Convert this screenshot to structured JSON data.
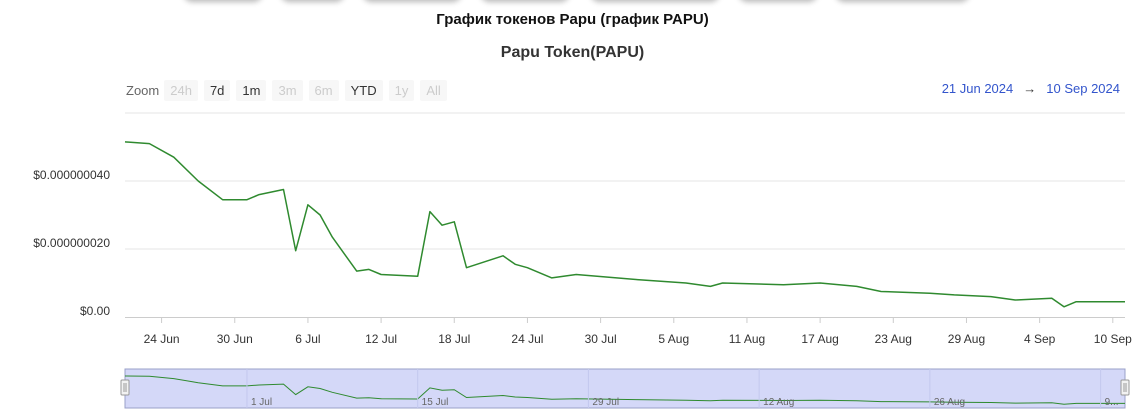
{
  "page": {
    "heading": "График токенов Papu (график PAPU)"
  },
  "range_selector": {
    "zoom_label": "Zoom",
    "buttons": [
      {
        "label": "24h",
        "enabled": false
      },
      {
        "label": "7d",
        "enabled": true
      },
      {
        "label": "1m",
        "enabled": true
      },
      {
        "label": "3m",
        "enabled": false
      },
      {
        "label": "6m",
        "enabled": false
      },
      {
        "label": "YTD",
        "enabled": true
      },
      {
        "label": "1y",
        "enabled": false
      },
      {
        "label": "All",
        "enabled": false
      }
    ],
    "from": "21 Jun 2024",
    "arrow": "→",
    "to": "10 Sep 2024"
  },
  "colors": {
    "line": "#2f8a2f",
    "navigator_fill": "#d4d8f8",
    "date_text": "#3355cc",
    "grid": "#e6e6e6"
  },
  "chart_data": {
    "type": "line",
    "title": "Papu Token(PAPU)",
    "xlabel": "",
    "ylabel": "",
    "y_ticks": [
      "$0.00",
      "$0.000000020",
      "$0.000000040"
    ],
    "x_ticks": [
      "24 Jun",
      "30 Jun",
      "6 Jul",
      "12 Jul",
      "18 Jul",
      "24 Jul",
      "30 Jul",
      "5 Aug",
      "11 Aug",
      "17 Aug",
      "23 Aug",
      "29 Aug",
      "4 Sep",
      "10 Sep"
    ],
    "navigator_ticks": [
      "1 Jul",
      "15 Jul",
      "29 Jul",
      "12 Aug",
      "26 Aug",
      "9..."
    ],
    "x_range": [
      "2024-06-21",
      "2024-09-11"
    ],
    "ylim": [
      0,
      6e-08
    ],
    "grid": true,
    "series": [
      {
        "values": [
          [
            "2024-06-21",
            5.15e-08
          ],
          [
            "2024-06-23",
            5.1e-08
          ],
          [
            "2024-06-25",
            4.7e-08
          ],
          [
            "2024-06-27",
            4e-08
          ],
          [
            "2024-06-29",
            3.45e-08
          ],
          [
            "2024-07-01",
            3.45e-08
          ],
          [
            "2024-07-02",
            3.6e-08
          ],
          [
            "2024-07-04",
            3.75e-08
          ],
          [
            "2024-07-05",
            1.95e-08
          ],
          [
            "2024-07-06",
            3.3e-08
          ],
          [
            "2024-07-07",
            3e-08
          ],
          [
            "2024-07-08",
            2.35e-08
          ],
          [
            "2024-07-10",
            1.35e-08
          ],
          [
            "2024-07-11",
            1.4e-08
          ],
          [
            "2024-07-12",
            1.25e-08
          ],
          [
            "2024-07-15",
            1.2e-08
          ],
          [
            "2024-07-16",
            3.1e-08
          ],
          [
            "2024-07-17",
            2.7e-08
          ],
          [
            "2024-07-18",
            2.8e-08
          ],
          [
            "2024-07-19",
            1.45e-08
          ],
          [
            "2024-07-22",
            1.8e-08
          ],
          [
            "2024-07-23",
            1.55e-08
          ],
          [
            "2024-07-24",
            1.45e-08
          ],
          [
            "2024-07-26",
            1.15e-08
          ],
          [
            "2024-07-28",
            1.25e-08
          ],
          [
            "2024-08-02",
            1.1e-08
          ],
          [
            "2024-08-06",
            1e-08
          ],
          [
            "2024-08-08",
            9e-09
          ],
          [
            "2024-08-09",
            1e-08
          ],
          [
            "2024-08-14",
            9.5e-09
          ],
          [
            "2024-08-17",
            1e-08
          ],
          [
            "2024-08-20",
            9e-09
          ],
          [
            "2024-08-22",
            7.5e-09
          ],
          [
            "2024-08-26",
            7e-09
          ],
          [
            "2024-08-28",
            6.5e-09
          ],
          [
            "2024-08-31",
            6e-09
          ],
          [
            "2024-09-02",
            5e-09
          ],
          [
            "2024-09-05",
            5.5e-09
          ],
          [
            "2024-09-06",
            3e-09
          ],
          [
            "2024-09-07",
            4.5e-09
          ],
          [
            "2024-09-11",
            4.5e-09
          ]
        ]
      }
    ]
  }
}
